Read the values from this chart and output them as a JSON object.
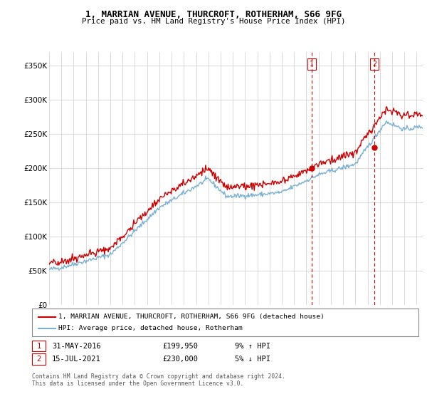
{
  "title": "1, MARRIAN AVENUE, THURCROFT, ROTHERHAM, S66 9FG",
  "subtitle": "Price paid vs. HM Land Registry's House Price Index (HPI)",
  "legend_line1": "1, MARRIAN AVENUE, THURCROFT, ROTHERHAM, S66 9FG (detached house)",
  "legend_line2": "HPI: Average price, detached house, Rotherham",
  "annotation1_label": "1",
  "annotation1_date": "31-MAY-2016",
  "annotation1_price": "£199,950",
  "annotation1_hpi": "9% ↑ HPI",
  "annotation2_label": "2",
  "annotation2_date": "15-JUL-2021",
  "annotation2_price": "£230,000",
  "annotation2_hpi": "5% ↓ HPI",
  "footer": "Contains HM Land Registry data © Crown copyright and database right 2024.\nThis data is licensed under the Open Government Licence v3.0.",
  "red_color": "#cc0000",
  "blue_color": "#7ab0d4",
  "background_color": "#ffffff",
  "grid_color": "#cccccc",
  "ylim": [
    0,
    370000
  ],
  "yticks": [
    0,
    50000,
    100000,
    150000,
    200000,
    250000,
    300000,
    350000
  ],
  "ytick_labels": [
    "£0",
    "£50K",
    "£100K",
    "£150K",
    "£200K",
    "£250K",
    "£300K",
    "£350K"
  ],
  "sale1_x": 2016.42,
  "sale1_y": 199950,
  "sale2_x": 2021.54,
  "sale2_y": 230000,
  "xmin": 1995,
  "xmax": 2025.5
}
